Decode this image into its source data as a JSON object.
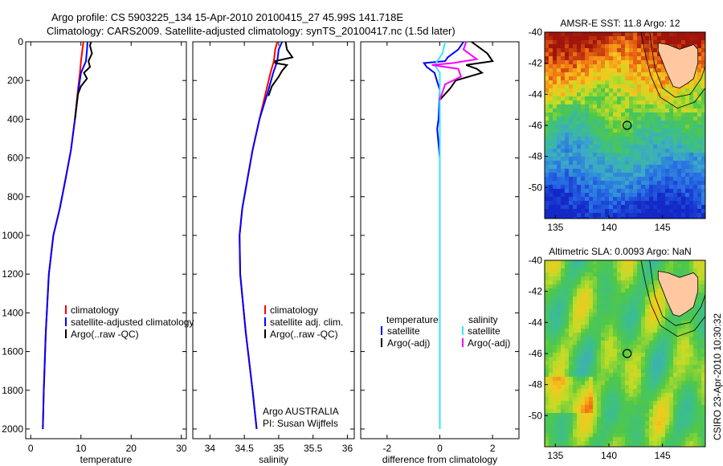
{
  "header": {
    "line1": "Argo profile: CS 5903225_134 15-Apr-2010 20100415_27 45.99S 141.718E",
    "line2": "Climatology: CARS2009. Satellite-adjusted climatology: synTS_20100417.nc (1.5d later)"
  },
  "side_text": "CSIRO 23-Apr-2010 10:30:32",
  "colors": {
    "red": "#ff0000",
    "blue": "#0000ff",
    "black": "#000000",
    "cyan": "#33e6ff",
    "magenta": "#ff00ff",
    "land": "#ffc8a0"
  },
  "chart_data": [
    {
      "type": "line",
      "id": "temperature",
      "xlabel": "temperature",
      "xlim": [
        -1,
        31
      ],
      "ylim": [
        0,
        2050
      ],
      "xticks": [
        0,
        10,
        20,
        30
      ],
      "xtick_labels": [
        "0",
        "10",
        "20",
        "30"
      ],
      "yticks": [
        0,
        200,
        400,
        600,
        800,
        1000,
        1200,
        1400,
        1600,
        1800,
        2000
      ],
      "ytick_labels": [
        "0",
        "200",
        "400",
        "600",
        "800",
        "1000",
        "1200",
        "1400",
        "1600",
        "1800",
        "2000"
      ],
      "legend": [
        "climatology",
        "satellite-adjusted climatology",
        "Argo(..raw -QC)"
      ],
      "series": [
        {
          "color": "red",
          "points": [
            [
              10.5,
              0
            ],
            [
              10.3,
              40
            ],
            [
              10.0,
              100
            ],
            [
              9.8,
              160
            ],
            [
              9.4,
              250
            ],
            [
              8.8,
              400
            ],
            [
              8.0,
              560
            ],
            [
              7.0,
              700
            ],
            [
              5.8,
              860
            ],
            [
              4.5,
              1000
            ],
            [
              3.6,
              1200
            ],
            [
              3.0,
              1500
            ],
            [
              2.6,
              1800
            ],
            [
              2.4,
              2000
            ]
          ]
        },
        {
          "color": "blue",
          "points": [
            [
              11.3,
              0
            ],
            [
              11.2,
              40
            ],
            [
              11.0,
              100
            ],
            [
              10.0,
              160
            ],
            [
              9.5,
              250
            ],
            [
              8.8,
              400
            ],
            [
              8.0,
              560
            ],
            [
              7.0,
              700
            ],
            [
              5.8,
              860
            ],
            [
              4.5,
              1000
            ],
            [
              3.6,
              1200
            ],
            [
              3.0,
              1500
            ],
            [
              2.6,
              1800
            ],
            [
              2.4,
              2000
            ]
          ]
        },
        {
          "color": "black",
          "points": [
            [
              12.0,
              0
            ],
            [
              11.8,
              20
            ],
            [
              12.2,
              60
            ],
            [
              11.5,
              100
            ],
            [
              11.8,
              130
            ],
            [
              10.6,
              160
            ],
            [
              11.2,
              190
            ],
            [
              10.0,
              230
            ],
            [
              9.4,
              270
            ],
            [
              8.8,
              400
            ]
          ]
        }
      ]
    },
    {
      "type": "line",
      "id": "salinity",
      "xlabel": "salinity",
      "xlim": [
        33.75,
        36.1
      ],
      "ylim": [
        0,
        2050
      ],
      "xticks": [
        34,
        34.5,
        35,
        35.5,
        36
      ],
      "xtick_labels": [
        "34",
        "34.5",
        "35",
        "35.5",
        "36"
      ],
      "legend": [
        "climatology",
        "satellite adj. clim.",
        "Argo(..raw -QC)"
      ],
      "annotation": [
        "Argo AUSTRALIA",
        "PI: Susan Wijffels"
      ],
      "series": [
        {
          "color": "red",
          "points": [
            [
              34.98,
              0
            ],
            [
              34.95,
              40
            ],
            [
              34.93,
              100
            ],
            [
              34.88,
              160
            ],
            [
              34.82,
              250
            ],
            [
              34.72,
              400
            ],
            [
              34.62,
              560
            ],
            [
              34.55,
              700
            ],
            [
              34.47,
              860
            ],
            [
              34.43,
              1000
            ],
            [
              34.44,
              1200
            ],
            [
              34.52,
              1500
            ],
            [
              34.62,
              1800
            ],
            [
              34.68,
              2000
            ]
          ]
        },
        {
          "color": "blue",
          "points": [
            [
              35.05,
              0
            ],
            [
              35.0,
              40
            ],
            [
              34.98,
              100
            ],
            [
              34.92,
              160
            ],
            [
              34.85,
              250
            ],
            [
              34.72,
              400
            ],
            [
              34.62,
              560
            ],
            [
              34.55,
              700
            ],
            [
              34.47,
              860
            ],
            [
              34.43,
              1000
            ],
            [
              34.44,
              1200
            ],
            [
              34.52,
              1500
            ],
            [
              34.62,
              1800
            ],
            [
              34.68,
              2000
            ]
          ]
        },
        {
          "color": "black",
          "points": [
            [
              35.1,
              0
            ],
            [
              35.12,
              40
            ],
            [
              35.2,
              80
            ],
            [
              34.95,
              100
            ],
            [
              34.95,
              110
            ],
            [
              35.12,
              120
            ],
            [
              35.05,
              150
            ],
            [
              35.0,
              180
            ],
            [
              34.9,
              230
            ],
            [
              34.85,
              280
            ]
          ]
        }
      ]
    },
    {
      "type": "line",
      "id": "difference",
      "xlabel": "difference from climatology",
      "xlim": [
        -3,
        3
      ],
      "ylim": [
        0,
        2050
      ],
      "xticks": [
        -2,
        0,
        2
      ],
      "xtick_labels": [
        "-2",
        "0",
        "2"
      ],
      "legend_headers": [
        "temperature",
        "salinity"
      ],
      "legend_temperature": [
        "satellite",
        "Argo(-adj)"
      ],
      "legend_salinity": [
        "satellite",
        "Argo(-adj)"
      ],
      "series": [
        {
          "color": "blue",
          "points": [
            [
              0.9,
              0
            ],
            [
              0.7,
              40
            ],
            [
              0.3,
              80
            ],
            [
              0.2,
              100
            ],
            [
              -0.6,
              110
            ],
            [
              -0.5,
              130
            ],
            [
              -0.2,
              160
            ],
            [
              0,
              250
            ],
            [
              -0.05,
              400
            ],
            [
              -0.1,
              450
            ],
            [
              0,
              600
            ],
            [
              0,
              2000
            ]
          ]
        },
        {
          "color": "black",
          "points": [
            [
              1.2,
              0
            ],
            [
              1.8,
              60
            ],
            [
              2.0,
              100
            ],
            [
              1.0,
              120
            ],
            [
              1.4,
              140
            ],
            [
              1.6,
              160
            ],
            [
              0.6,
              200
            ],
            [
              0.4,
              240
            ],
            [
              0.0,
              300
            ]
          ]
        },
        {
          "color": "cyan",
          "points": [
            [
              0.2,
              0
            ],
            [
              0.1,
              60
            ],
            [
              -0.1,
              100
            ],
            [
              -0.2,
              120
            ],
            [
              0,
              160
            ],
            [
              0,
              300
            ],
            [
              0,
              1000
            ],
            [
              0,
              2000
            ]
          ]
        },
        {
          "color": "magenta",
          "points": [
            [
              1.0,
              0
            ],
            [
              0.9,
              40
            ],
            [
              1.4,
              90
            ],
            [
              0.5,
              110
            ],
            [
              -0.3,
              120
            ],
            [
              0.7,
              140
            ],
            [
              0.8,
              180
            ],
            [
              0.2,
              220
            ],
            [
              0,
              300
            ]
          ]
        }
      ]
    },
    {
      "type": "heatmap",
      "id": "sst_map",
      "title": "AMSR-E SST: 11.8 Argo: 12",
      "xlim": [
        134,
        149
      ],
      "ylim": [
        -52,
        -40
      ],
      "xticks": [
        135,
        140,
        145
      ],
      "xtick_labels": [
        "135",
        "140",
        "145"
      ],
      "yticks": [
        -40,
        -42,
        -44,
        -46,
        -48,
        -50
      ],
      "ytick_labels": [
        "-40",
        "-42",
        "-44",
        "-46",
        "-48",
        "-50"
      ],
      "marker": [
        141.7,
        -46.0
      ]
    },
    {
      "type": "heatmap",
      "id": "sla_map",
      "title": "Altimetric SLA: 0.0093 Argo: NaN",
      "xlim": [
        134,
        149
      ],
      "ylim": [
        -52,
        -40
      ],
      "xticks": [
        135,
        140,
        145
      ],
      "xtick_labels": [
        "135",
        "140",
        "145"
      ],
      "yticks": [
        -40,
        -42,
        -44,
        -46,
        -48,
        -50
      ],
      "ytick_labels": [
        "-40",
        "-42",
        "-44",
        "-46",
        "-48",
        "-50"
      ],
      "marker": [
        141.7,
        -46.0
      ]
    }
  ]
}
